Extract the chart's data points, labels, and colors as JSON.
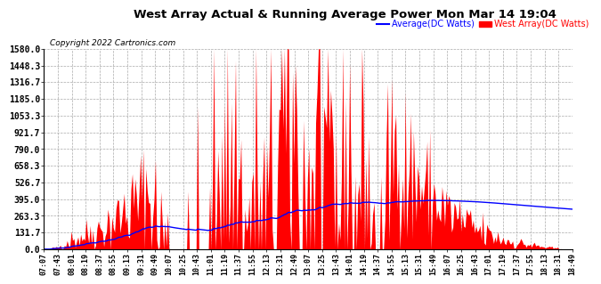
{
  "title": "West Array Actual & Running Average Power Mon Mar 14 19:04",
  "copyright": "Copyright 2022 Cartronics.com",
  "legend_avg": "Average(DC Watts)",
  "legend_west": "West Array(DC Watts)",
  "yticks": [
    0.0,
    131.7,
    263.3,
    395.0,
    526.7,
    658.3,
    790.0,
    921.7,
    1053.3,
    1185.0,
    1316.7,
    1448.3,
    1580.0
  ],
  "ymax": 1580.0,
  "ymin": 0.0,
  "background_color": "#ffffff",
  "plot_bg_color": "#ffffff",
  "grid_color": "#aaaaaa",
  "bar_color": "#ff0000",
  "avg_line_color": "#0000ff",
  "title_color": "#000000",
  "copyright_color": "#000000",
  "xtick_labels": [
    "07:07",
    "07:43",
    "08:01",
    "08:19",
    "08:37",
    "08:55",
    "09:13",
    "09:31",
    "09:49",
    "10:07",
    "10:25",
    "10:43",
    "11:01",
    "11:19",
    "11:37",
    "11:55",
    "12:13",
    "12:31",
    "12:49",
    "13:07",
    "13:25",
    "13:43",
    "14:01",
    "14:19",
    "14:37",
    "14:55",
    "15:13",
    "15:31",
    "15:49",
    "16:07",
    "16:25",
    "16:43",
    "17:01",
    "17:19",
    "17:37",
    "17:55",
    "18:13",
    "18:31",
    "18:49"
  ],
  "n_points": 390,
  "seed": 42
}
